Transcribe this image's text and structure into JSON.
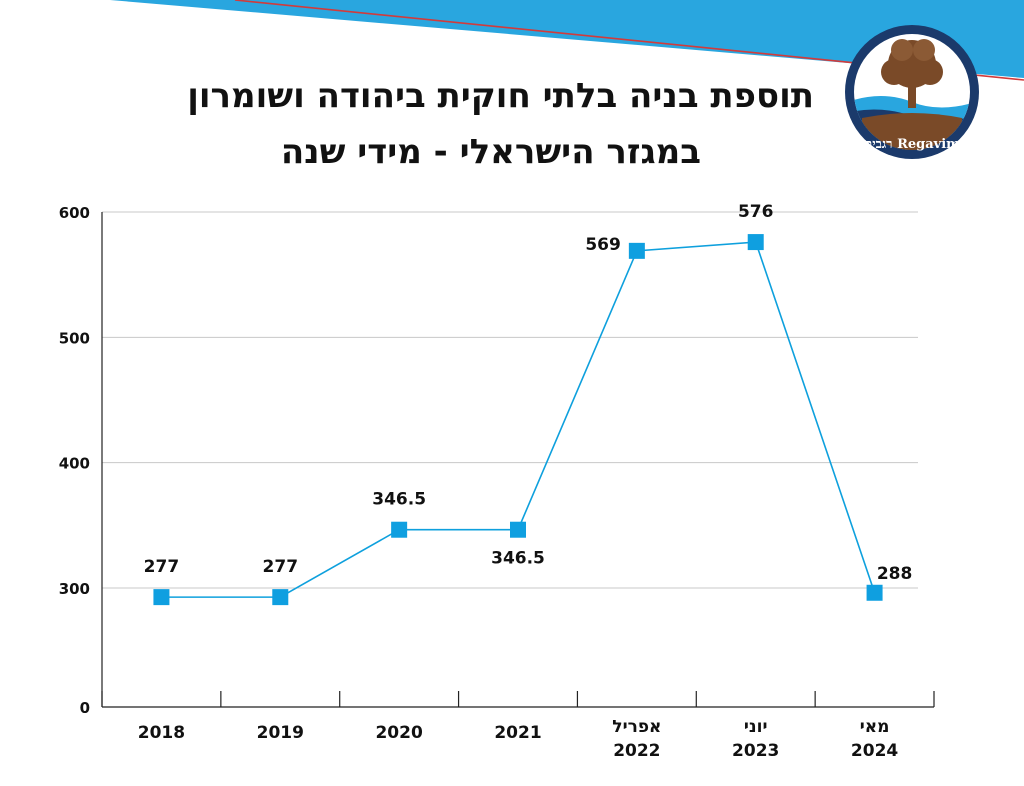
{
  "title": {
    "line1": "תוספת בניה בלתי חוקית ביהודה ושומרון",
    "line2": "במגזר הישראלי - מידי שנה"
  },
  "logo": {
    "text": "רגבים Regavim",
    "icon": "tree-icon",
    "colors": {
      "ring": "#1b3a6b",
      "tree": "#7a4a28",
      "water": "#29a6df"
    }
  },
  "colors": {
    "banner": "#29a6df",
    "banner_stripe": "#d23b3b",
    "series": "#0ea0dd",
    "marker": "#0f9fe0",
    "grid": "#c8c8c8",
    "axis": "#222222"
  },
  "chart_data": {
    "type": "line",
    "categories": [
      [
        "2018"
      ],
      [
        "2019"
      ],
      [
        "2020"
      ],
      [
        "2021"
      ],
      [
        "אפריל",
        "2022"
      ],
      [
        "יוני",
        "2023"
      ],
      [
        "מאי",
        "2024"
      ]
    ],
    "series": [
      {
        "values": [
          277,
          277,
          346.5,
          346.5,
          569,
          576,
          288
        ]
      }
    ],
    "data_labels": [
      "277",
      "277",
      "346.5",
      "346.5",
      "569",
      "576",
      "288"
    ],
    "label_position": [
      "above",
      "above",
      "above",
      "below",
      "left",
      "above",
      "above-right"
    ],
    "y_ticks": [
      0,
      300,
      400,
      500,
      600
    ],
    "y_axis_break": [
      0,
      300
    ],
    "ylim": [
      0,
      600
    ],
    "grid": true,
    "legend": "none",
    "xlabel": "",
    "ylabel": ""
  }
}
